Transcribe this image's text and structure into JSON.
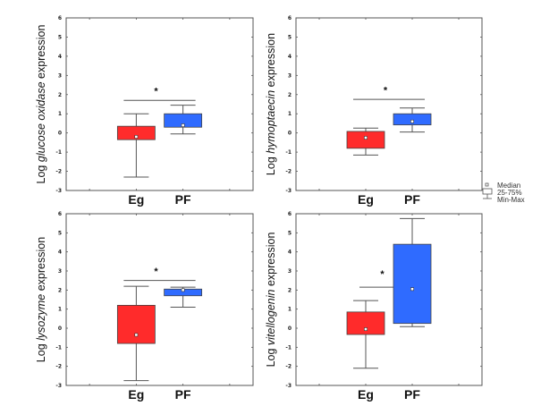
{
  "colors": {
    "eg": "#ff2b2b",
    "pf": "#2f6bff",
    "frame": "#555555",
    "whisker": "#555555"
  },
  "legend": {
    "median": "Median",
    "box": "25-75%",
    "whisker": "Min-Max"
  },
  "chart_data": [
    {
      "type": "box",
      "ylabel_prefix": "Log ",
      "ylabel_italic": "glucose oxidase",
      "ylabel_suffix": " expression",
      "ylim": [
        -3,
        6
      ],
      "yticks": [
        "6",
        "5",
        "4",
        "3",
        "2",
        "1",
        "0",
        "-1",
        "-2",
        "-3"
      ],
      "categories": [
        "Eg",
        "PF"
      ],
      "series": [
        {
          "name": "Eg",
          "min": -2.3,
          "q1": -0.35,
          "median": -0.2,
          "q3": 0.35,
          "max": 1.0
        },
        {
          "name": "PF",
          "min": -0.05,
          "q1": 0.3,
          "median": 0.4,
          "q3": 1.0,
          "max": 1.45
        }
      ],
      "significance": {
        "label": "*",
        "bar_y": 1.7,
        "star_y": 2.2
      }
    },
    {
      "type": "box",
      "ylabel_prefix": "Log ",
      "ylabel_italic": "hymoptaecin",
      "ylabel_suffix": " expression",
      "ylim": [
        -3,
        6
      ],
      "yticks": [
        "6",
        "5",
        "4",
        "3",
        "2",
        "1",
        "0",
        "-1",
        "-2",
        "-3"
      ],
      "categories": [
        "Eg",
        "PF"
      ],
      "series": [
        {
          "name": "Eg",
          "min": -1.15,
          "q1": -0.8,
          "median": -0.25,
          "q3": 0.08,
          "max": 0.25
        },
        {
          "name": "PF",
          "min": 0.05,
          "q1": 0.42,
          "median": 0.6,
          "q3": 1.0,
          "max": 1.3
        }
      ],
      "significance": {
        "label": "*",
        "bar_y": 1.75,
        "star_y": 2.25
      }
    },
    {
      "type": "box",
      "ylabel_prefix": "Log ",
      "ylabel_italic": "lysozyme",
      "ylabel_suffix": " expression",
      "ylim": [
        -3,
        6
      ],
      "yticks": [
        "6",
        "5",
        "4",
        "3",
        "2",
        "1",
        "0",
        "-1",
        "-2",
        "-3"
      ],
      "categories": [
        "Eg",
        "PF"
      ],
      "series": [
        {
          "name": "Eg",
          "min": -2.75,
          "q1": -0.8,
          "median": -0.35,
          "q3": 1.2,
          "max": 2.2
        },
        {
          "name": "PF",
          "min": 1.1,
          "q1": 1.7,
          "median": 2.0,
          "q3": 2.05,
          "max": 2.15
        }
      ],
      "significance": {
        "label": "*",
        "bar_y": 2.5,
        "star_y": 3.0
      }
    },
    {
      "type": "box",
      "ylabel_prefix": "Log ",
      "ylabel_italic": "vitellogenin",
      "ylabel_suffix": " expression",
      "ylim": [
        -3,
        6
      ],
      "yticks": [
        "6",
        "5",
        "4",
        "3",
        "2",
        "1",
        "0",
        "-1",
        "-2",
        "-3"
      ],
      "categories": [
        "Eg",
        "PF"
      ],
      "series": [
        {
          "name": "Eg",
          "min": -2.1,
          "q1": -0.33,
          "median": -0.05,
          "q3": 0.85,
          "max": 1.45
        },
        {
          "name": "PF",
          "min": 0.08,
          "q1": 0.25,
          "median": 2.05,
          "q3": 4.4,
          "max": 5.75
        }
      ],
      "significance": {
        "label": "*",
        "bar_y": 2.15,
        "star_y": 2.85,
        "bar_span": "left-to-pf-center"
      }
    }
  ]
}
